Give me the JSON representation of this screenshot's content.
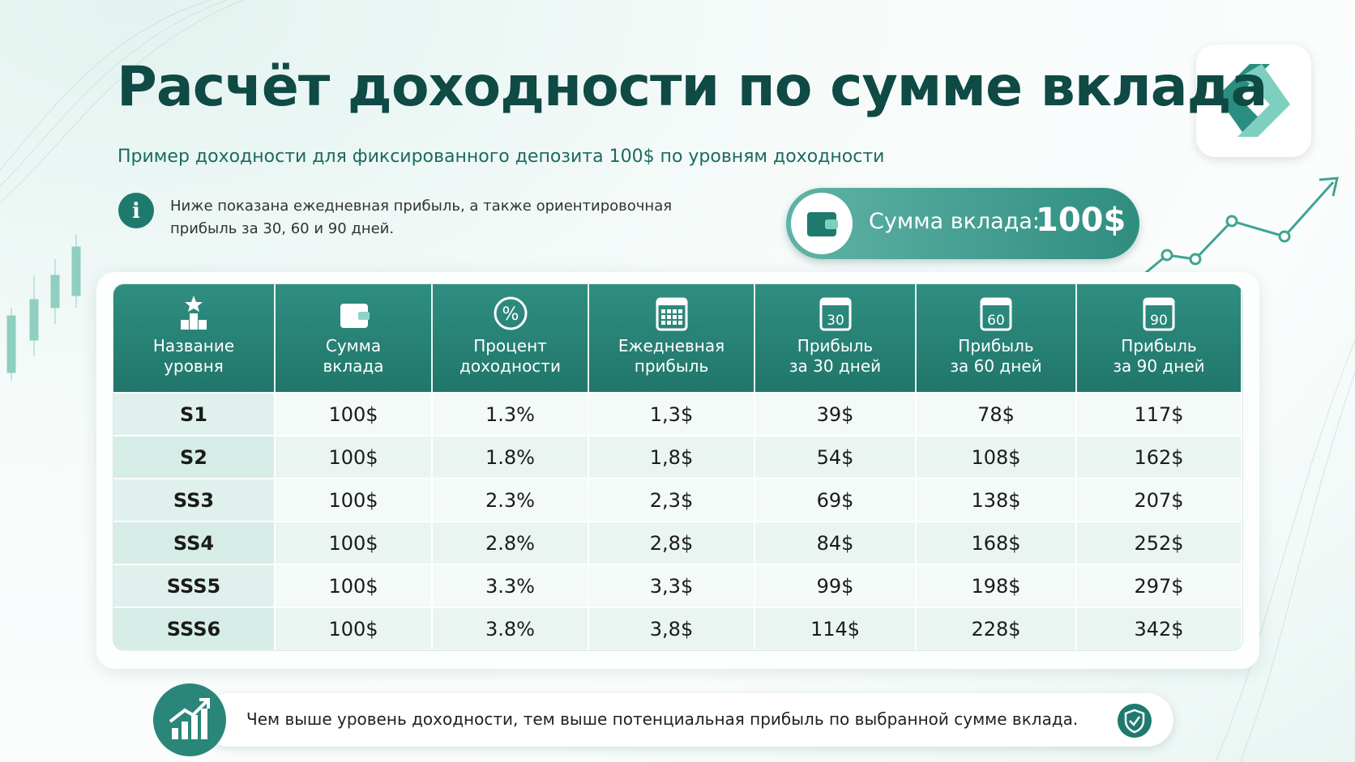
{
  "header": {
    "title": "Расчёт доходности по сумме вклада",
    "subtitle": "Пример доходности для фиксированного депозита 100$ по уровням доходности"
  },
  "info": {
    "lines": [
      "Ниже показана ежедневная прибыль, а также ориентировочная",
      "прибыль за 30, 60 и 90 дней."
    ]
  },
  "deposit": {
    "label": "Сумма вклада:",
    "value": "100$"
  },
  "table": {
    "columns": [
      {
        "lines": [
          "Название",
          "уровня"
        ]
      },
      {
        "lines": [
          "Сумма",
          "вклада"
        ]
      },
      {
        "lines": [
          "Процент",
          "доходности"
        ]
      },
      {
        "lines": [
          "Ежедневная",
          "прибыль"
        ]
      },
      {
        "lines": [
          "Прибыль",
          "за 30 дней"
        ],
        "icon_label": "30"
      },
      {
        "lines": [
          "Прибыль",
          "за 60 дней"
        ],
        "icon_label": "60"
      },
      {
        "lines": [
          "Прибыль",
          "за 90 дней"
        ],
        "icon_label": "90"
      }
    ],
    "rows": [
      [
        "S1",
        "100$",
        "1.3%",
        "1,3$",
        "39$",
        "78$",
        "117$"
      ],
      [
        "S2",
        "100$",
        "1.8%",
        "1,8$",
        "54$",
        "108$",
        "162$"
      ],
      [
        "SS3",
        "100$",
        "2.3%",
        "2,3$",
        "69$",
        "138$",
        "207$"
      ],
      [
        "SS4",
        "100$",
        "2.8%",
        "2,8$",
        "84$",
        "168$",
        "252$"
      ],
      [
        "SSS5",
        "100$",
        "3.3%",
        "3,3$",
        "99$",
        "198$",
        "297$"
      ],
      [
        "SSS6",
        "100$",
        "3.8%",
        "3,8$",
        "114$",
        "228$",
        "342$"
      ]
    ]
  },
  "footer": {
    "text": "Чем выше уровень доходности, тем выше потенциальная прибыль по выбранной сумме вклада."
  }
}
